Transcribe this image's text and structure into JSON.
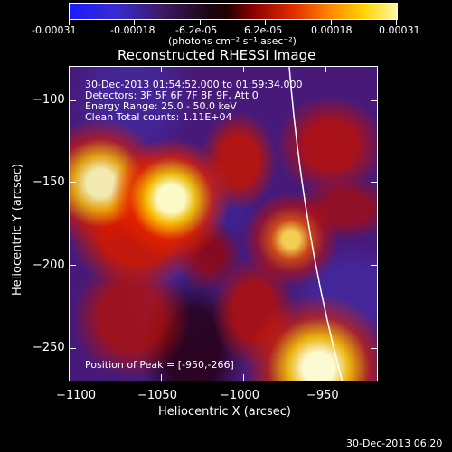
{
  "colorbar": {
    "tick_labels": [
      "-0.00031",
      "-0.00018",
      "-6.2e-05",
      "6.2e-05",
      "0.00018",
      "0.00031"
    ],
    "units_label": "(photons cm⁻² s⁻¹ asec⁻²)"
  },
  "plot": {
    "title": "Reconstructed RHESSI Image",
    "info": {
      "time_range": "30-Dec-2013 01:54:52.000 to 01:59:34.000",
      "detectors": "Detectors: 3F 5F 6F 7F 8F 9F, Att 0",
      "energy": "Energy Range: 25.0 - 50.0 keV",
      "method": "Clean     Total counts: 1.11E+04"
    },
    "peak": "Position of Peak = [-950,-266]",
    "xlabel": "Heliocentric X (arcsec)",
    "ylabel": "Heliocentric Y (arcsec)",
    "x_ticks": [
      "−1100",
      "−1050",
      "−1000",
      "−950"
    ],
    "y_ticks": [
      "−100",
      "−150",
      "−200",
      "−250"
    ],
    "xlim": [
      -1100,
      -915
    ],
    "ylim": [
      -272,
      -82
    ]
  },
  "footer": {
    "timestamp": "30-Dec-2013 06:20"
  },
  "colors": {
    "background": "#000000",
    "frame": "#ffffff",
    "limb": "#ffffff"
  }
}
